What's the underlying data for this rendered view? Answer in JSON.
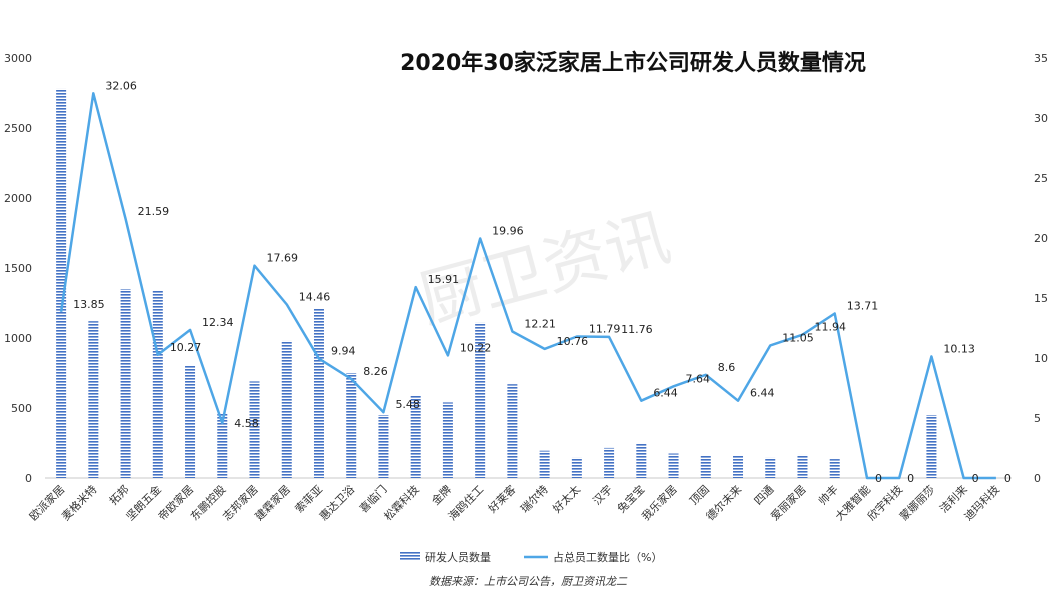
{
  "chart_data": {
    "type": "bar",
    "title": "2020年30家泛家居上市公司研发人员数量情况",
    "categories": [
      "欧派家居",
      "麦格米特",
      "拓邦",
      "坚朗五金",
      "帝欧家居",
      "东鹏控股",
      "志邦家居",
      "建霖家居",
      "索菲亚",
      "惠达卫浴",
      "喜临门",
      "松霖科技",
      "金牌",
      "海鸥住工",
      "好莱客",
      "瑞尔特",
      "好太太",
      "汉宇",
      "兔宝宝",
      "我乐家居",
      "顶固",
      "德尔未来",
      "四通",
      "爱丽家居",
      "帅丰",
      "大雅智能",
      "欣宇科技",
      "蒙娜丽莎",
      "洁利来",
      "迪玛科技"
    ],
    "series": [
      {
        "name": "研发人员数量",
        "axis": "left",
        "type": "bar",
        "color": "#4472c4",
        "values": [
          2780,
          1120,
          1350,
          1340,
          800,
          460,
          690,
          980,
          1210,
          750,
          450,
          590,
          540,
          1110,
          670,
          195,
          145,
          215,
          245,
          175,
          160,
          160,
          145,
          165,
          135,
          0,
          0,
          450,
          0,
          0
        ]
      },
      {
        "name": "占总员工数量比（%）",
        "axis": "right",
        "type": "line",
        "color": "#4ea6e6",
        "values": [
          13.85,
          32.06,
          21.59,
          10.27,
          12.34,
          4.58,
          17.69,
          14.46,
          9.94,
          8.26,
          5.48,
          15.91,
          10.22,
          19.96,
          12.21,
          10.76,
          11.79,
          11.76,
          6.44,
          7.64,
          8.6,
          6.44,
          11.05,
          11.94,
          13.71,
          0,
          0,
          10.13,
          0,
          0
        ],
        "labels": [
          "13.85",
          "32.06",
          "21.59",
          "10.27",
          "12.34",
          "4.58",
          "17.69",
          "14.46",
          "9.94",
          "8.26",
          "5.48",
          "15.91",
          "10.22",
          "19.96",
          "12.21",
          "10.76",
          "11.79",
          "11.76",
          "6.44",
          "7.64",
          "8.6",
          "6.44",
          "11.05",
          "11.94",
          "13.71",
          "0",
          "0",
          "10.13",
          "0",
          "0"
        ]
      }
    ],
    "y_left": {
      "ylim": [
        0,
        3000
      ],
      "ticks": [
        "0",
        "500",
        "1000",
        "1500",
        "2000",
        "2500",
        "3000"
      ]
    },
    "y_right": {
      "ylim": [
        0,
        35
      ],
      "ticks": [
        "0",
        "5",
        "10",
        "15",
        "20",
        "25",
        "30",
        "35"
      ]
    },
    "grid": false,
    "legend_position": "bottom",
    "watermark": "厨卫资讯",
    "source": "数据来源：上市公司公告，厨卫资讯龙二"
  }
}
